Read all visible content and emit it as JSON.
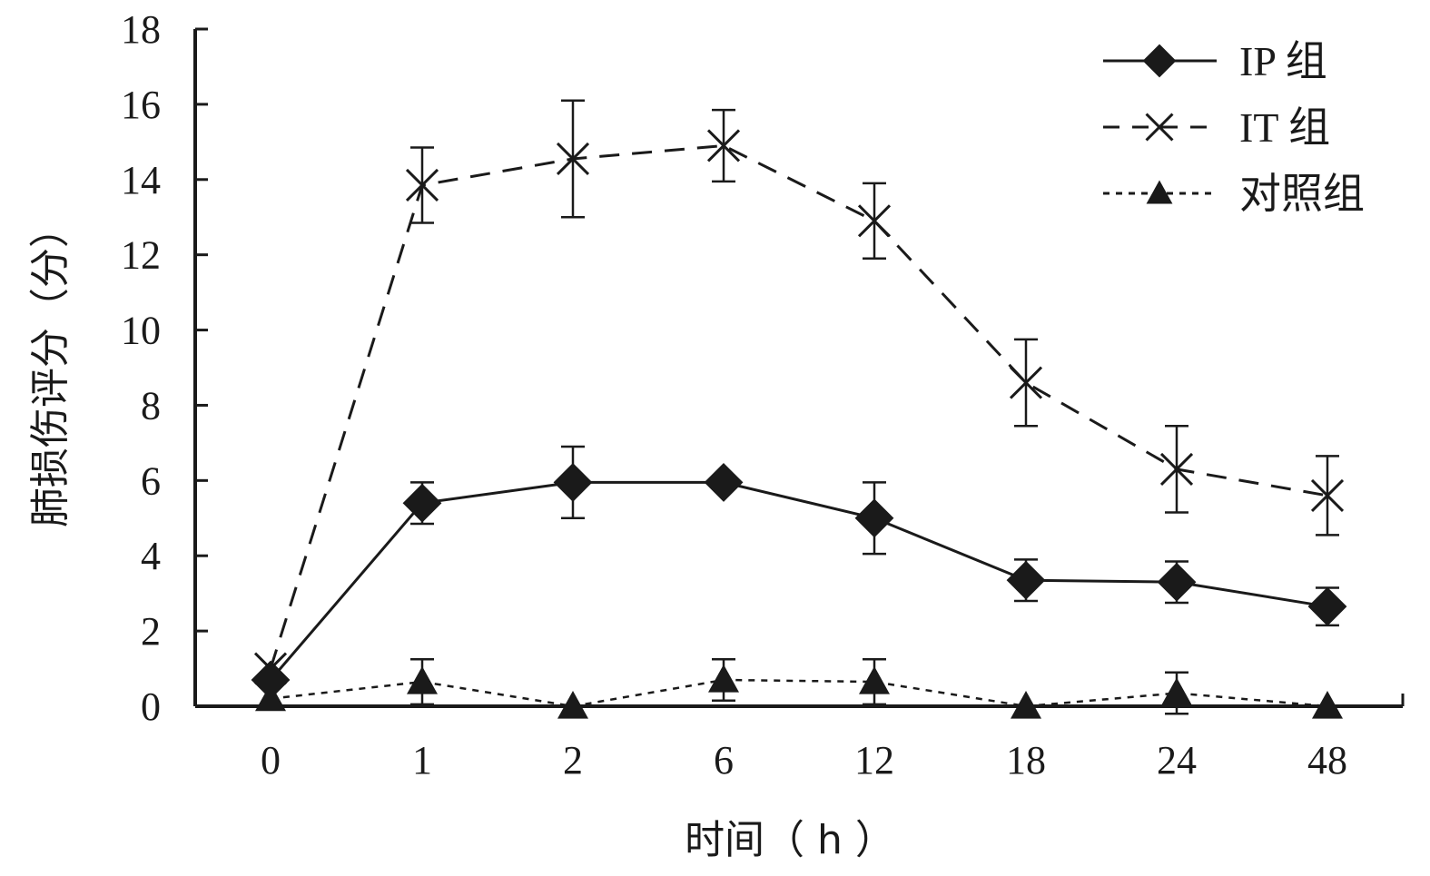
{
  "chart_data": {
    "type": "line",
    "xlabel": "时间（ h ）",
    "ylabel": "肺损伤评分（分）",
    "categories": [
      "0",
      "1",
      "2",
      "6",
      "12",
      "18",
      "24",
      "48"
    ],
    "y_ticks": [
      "0",
      "2",
      "4",
      "6",
      "8",
      "10",
      "12",
      "14",
      "16",
      "18"
    ],
    "ylim": [
      0,
      18
    ],
    "grid": false,
    "legend_position": "top-right",
    "series": [
      {
        "name": "IP 组",
        "line_style": "solid",
        "marker": "diamond",
        "values": [
          0.7,
          5.4,
          5.95,
          5.95,
          5.0,
          3.35,
          3.3,
          2.65
        ],
        "errors": [
          0,
          0.55,
          0.95,
          0,
          0.95,
          0.55,
          0.55,
          0.5
        ]
      },
      {
        "name": "IT 组",
        "line_style": "dashed",
        "marker": "x",
        "values": [
          1.0,
          13.85,
          14.55,
          14.9,
          12.9,
          8.6,
          6.3,
          5.6
        ],
        "errors": [
          0,
          1.0,
          1.55,
          0.95,
          1.0,
          1.15,
          1.15,
          1.05
        ]
      },
      {
        "name": "对照组",
        "line_style": "dotted",
        "marker": "triangle",
        "values": [
          0.2,
          0.65,
          0,
          0.7,
          0.65,
          0,
          0.35,
          0
        ],
        "errors": [
          0,
          0.6,
          0,
          0.55,
          0.6,
          0,
          0.55,
          0
        ]
      }
    ],
    "colors": {
      "ink": "#1a1a1a",
      "background": "#ffffff"
    }
  }
}
